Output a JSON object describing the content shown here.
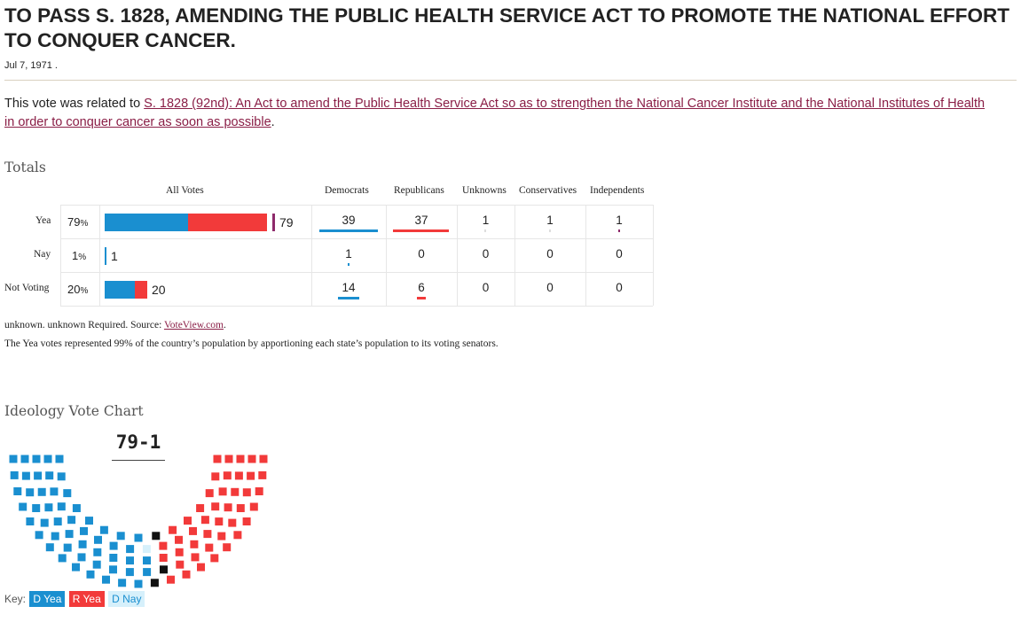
{
  "title": "TO PASS S. 1828, AMENDING THE PUBLIC HEALTH SERVICE ACT TO PROMOTE THE NATIONAL EFFORT TO CONQUER CANCER.",
  "date": "Jul 7, 1971 .",
  "related_prefix": "This vote was related to ",
  "related_link": "S. 1828 (92nd): An Act to amend the Public Health Service Act so as to strengthen the National Cancer Institute and the National Institutes of Health in order to conquer cancer as soon as possible",
  "related_suffix": ".",
  "totals_heading": "Totals",
  "columns": {
    "all_votes": "All Votes",
    "democrats": "Democrats",
    "republicans": "Republicans",
    "unknowns": "Unknowns",
    "conservatives": "Conservatives",
    "independents": "Independents"
  },
  "rows": [
    {
      "label": "Yea",
      "pct": "79",
      "pct_unit": "%",
      "total": "79",
      "dem": "39",
      "rep": "37",
      "unk": "1",
      "con": "1",
      "ind": "1"
    },
    {
      "label": "Nay",
      "pct": "1",
      "pct_unit": "%",
      "total": "1",
      "dem": "1",
      "rep": "0",
      "unk": "0",
      "con": "0",
      "ind": "0"
    },
    {
      "label": "Not Voting",
      "pct": "20",
      "pct_unit": "%",
      "total": "20",
      "dem": "14",
      "rep": "6",
      "unk": "0",
      "con": "0",
      "ind": "0"
    }
  ],
  "note_prefix": "unknown. unknown Required. Source: ",
  "note_link": "VoteView.com",
  "note_suffix": ".",
  "note2": "The Yea votes represented 99% of the country’s population by apportioning each state’s population to its voting senators.",
  "ideology_heading": "Ideology Vote Chart",
  "score": "79-1",
  "key_label": "Key:",
  "key": [
    {
      "label": "D Yea",
      "bg": "#1a8fd0",
      "fg": "#ffffff"
    },
    {
      "label": "R Yea",
      "bg": "#f23a3a",
      "fg": "#ffffff"
    },
    {
      "label": "D Nay",
      "bg": "#d6f0fb",
      "fg": "#1a8fd0"
    }
  ],
  "colors": {
    "dem": "#1a8fd0",
    "rep": "#f23a3a",
    "nay": "#d6f0fb",
    "other": "#111111",
    "independent": "#8e2a6b",
    "link": "#8a1e46"
  }
}
